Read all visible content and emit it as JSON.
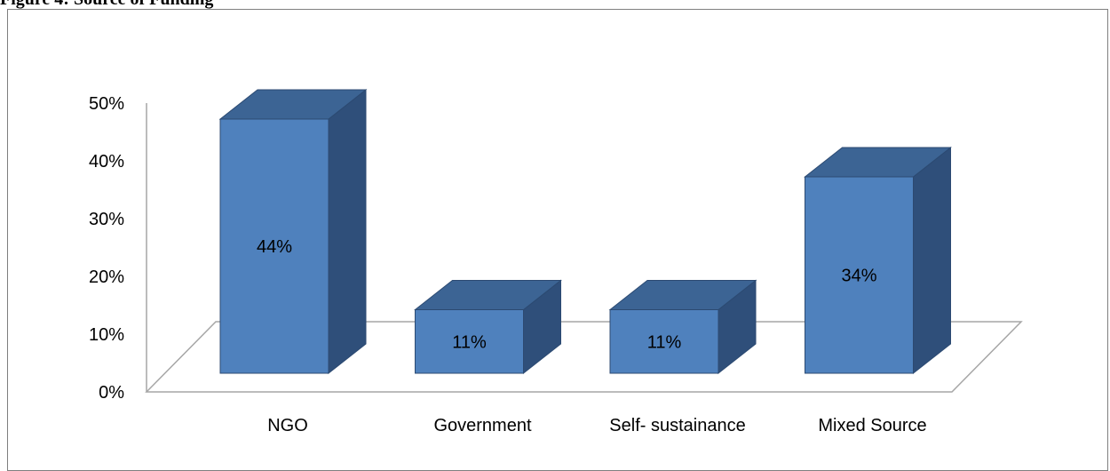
{
  "figure": {
    "caption": "Figure 4: Source of Funding"
  },
  "chart_data": {
    "type": "bar",
    "style": "3d-column",
    "categories": [
      "NGO",
      "Government",
      "Self- sustainance",
      "Mixed Source"
    ],
    "values": [
      44,
      11,
      11,
      34
    ],
    "value_labels": [
      "44%",
      "11%",
      "11%",
      "34%"
    ],
    "ylim": [
      0,
      50
    ],
    "yticks": [
      "0%",
      "10%",
      "20%",
      "30%",
      "40%",
      "50%"
    ],
    "grid": false,
    "legend": "none",
    "colors": {
      "front": "#4f81bd",
      "side": "#2f4f7a",
      "top": "#3c6494",
      "edge": "#2c4a72",
      "axis": "#a6a6a6"
    }
  }
}
